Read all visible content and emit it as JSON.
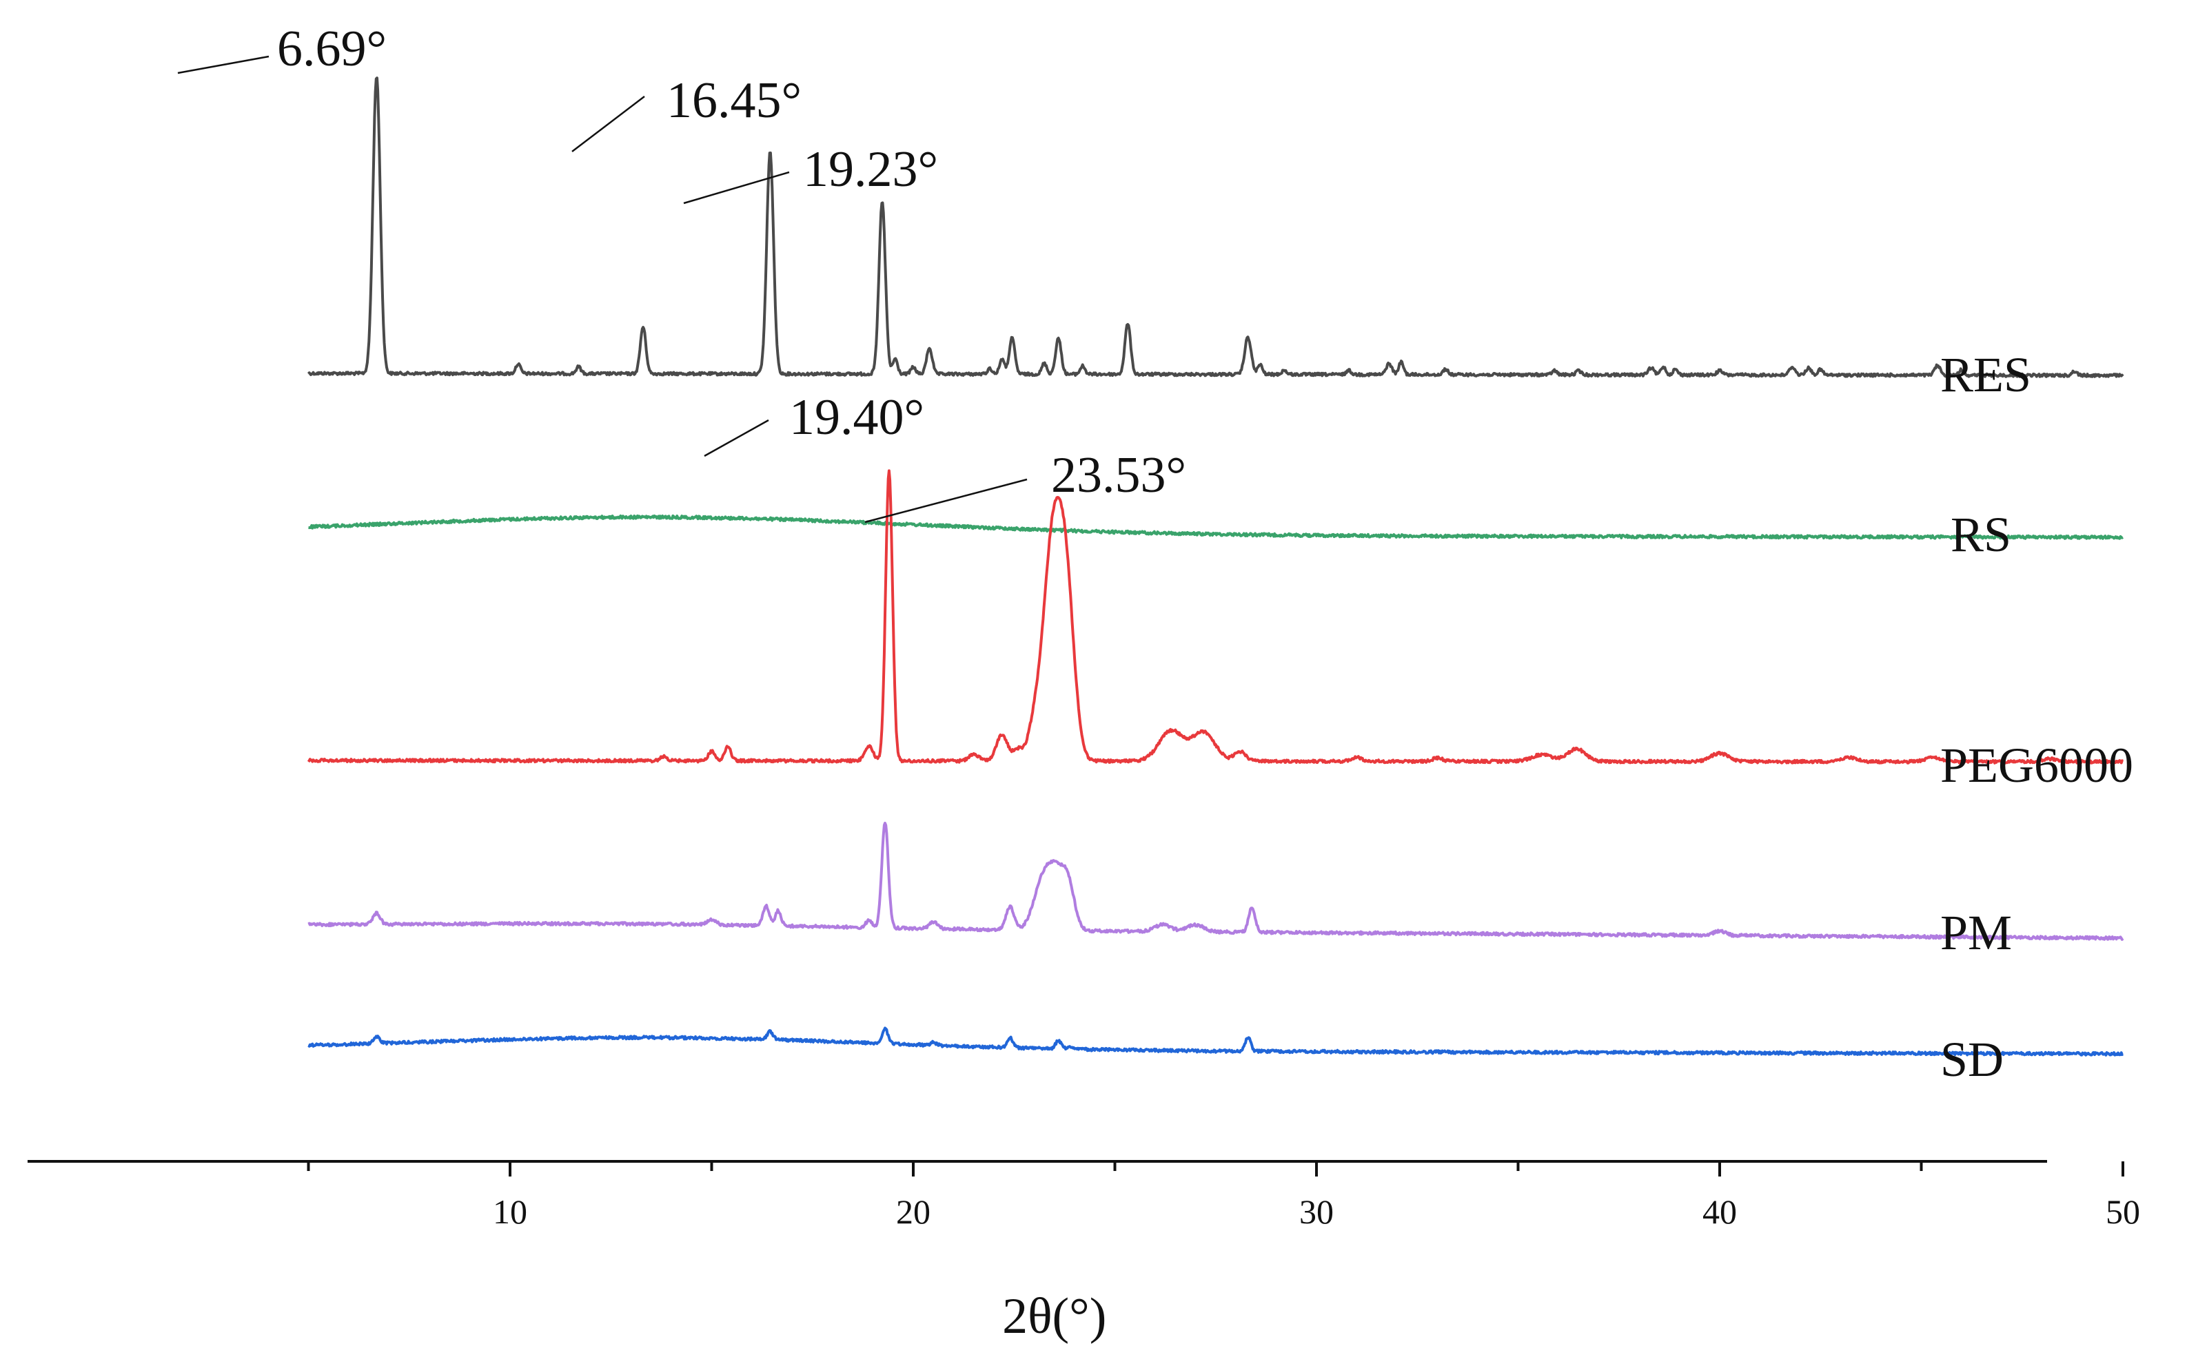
{
  "chart_data": {
    "type": "line",
    "title": "",
    "xlabel": "2θ(°)",
    "ylabel": "",
    "xlim": [
      0,
      50
    ],
    "x_ticks": [
      10,
      20,
      30,
      40,
      50
    ],
    "x_tick_labels": [
      "10",
      "20",
      "30",
      "40",
      "50"
    ],
    "grid": false,
    "legend": "labels at right end of each trace",
    "series": [
      {
        "name": "RES",
        "color": "#4a4a4a",
        "peaks_2theta": [
          6.69,
          10.2,
          11.7,
          13.3,
          16.45,
          19.23,
          19.5,
          20.4,
          22.4,
          23.6,
          25.3,
          28.3,
          31.8,
          32.1,
          38.5,
          42.0,
          45.4
        ]
      },
      {
        "name": "RS",
        "color": "#3aa36b",
        "shape": "amorphous halo, broad maximum near 13.5°"
      },
      {
        "name": "PEG6000",
        "color": "#e8393c",
        "peaks_2theta": [
          15.0,
          15.4,
          18.9,
          19.4,
          22.2,
          23.53,
          26.4,
          27.2,
          28.1,
          35.6,
          36.4,
          40.0
        ]
      },
      {
        "name": "PM",
        "color": "#b07de0",
        "peaks_2theta": [
          6.69,
          16.45,
          19.3,
          22.4,
          23.5,
          28.4
        ]
      },
      {
        "name": "SD",
        "color": "#2166d8",
        "peaks_2theta": [
          6.69,
          16.45,
          19.3,
          22.4,
          23.6,
          28.3
        ]
      }
    ],
    "annotations": [
      {
        "text": "6.69°",
        "series": "RES",
        "x": 6.69
      },
      {
        "text": "16.45°",
        "series": "RES",
        "x": 16.45
      },
      {
        "text": "19.23°",
        "series": "RES",
        "x": 19.23
      },
      {
        "text": "19.40°",
        "series": "PEG6000",
        "x": 19.4
      },
      {
        "text": "23.53°",
        "series": "PEG6000",
        "x": 23.53
      }
    ]
  }
}
